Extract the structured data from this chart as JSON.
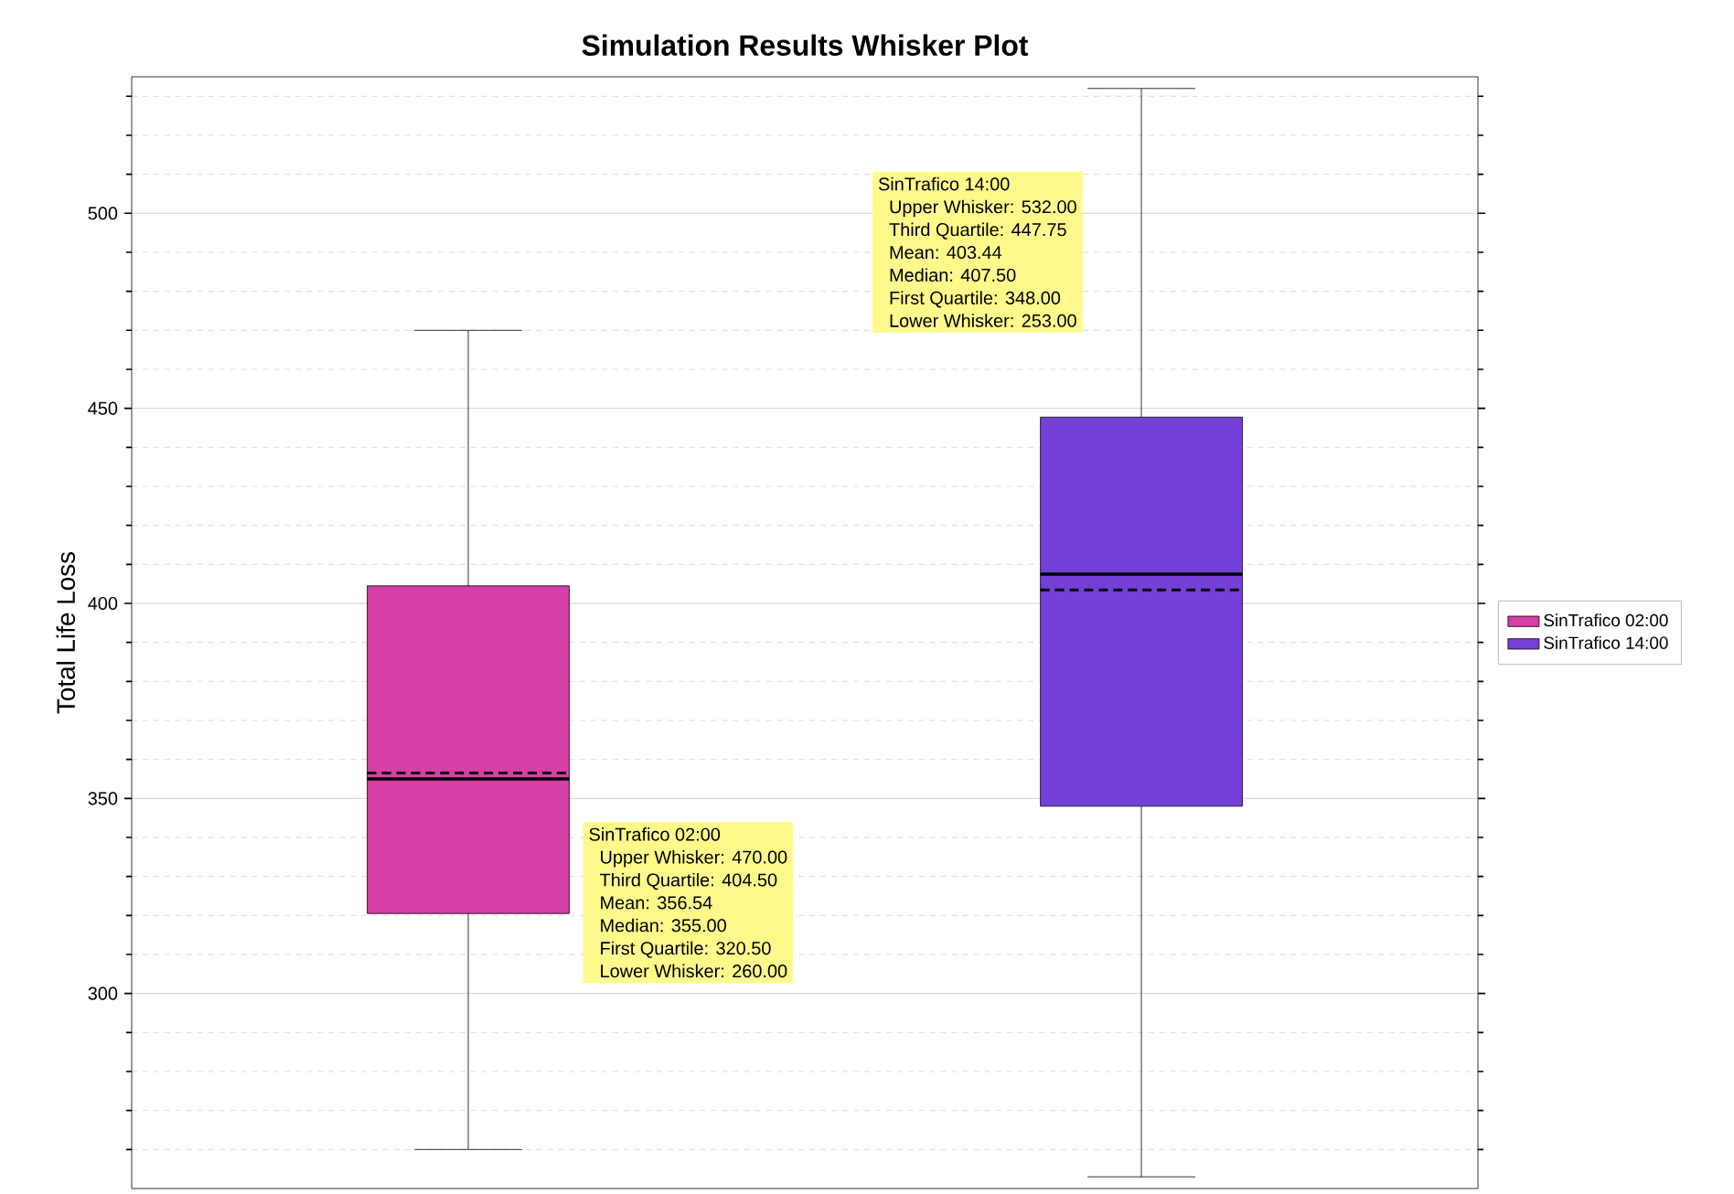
{
  "chart_data": {
    "type": "box",
    "title": "Simulation Results Whisker Plot",
    "ylabel": "Total Life Loss",
    "categories": [
      null,
      null
    ],
    "series": [
      {
        "name": "SinTrafico 02:00",
        "color": "#d63fa6",
        "boxes": [
          {
            "low": 260,
            "q1": 320.5,
            "median": 355,
            "q3": 404.5,
            "high": 470,
            "mean": 356.54
          },
          null
        ]
      },
      {
        "name": "SinTrafico 14:00",
        "color": "#7440d8",
        "boxes": [
          null,
          {
            "low": 253,
            "q1": 348,
            "median": 407.5,
            "q3": 447.75,
            "high": 532,
            "mean": 403.44
          }
        ]
      }
    ],
    "ylim": [
      250,
      535
    ],
    "yticks": [
      {
        "value": 260,
        "label": null
      },
      {
        "value": 270,
        "label": null
      },
      {
        "value": 280,
        "label": null
      },
      {
        "value": 290,
        "label": null
      },
      300,
      {
        "value": 310,
        "label": null
      },
      {
        "value": 320,
        "label": null
      },
      {
        "value": 330,
        "label": null
      },
      {
        "value": 340,
        "label": null
      },
      350,
      {
        "value": 360,
        "label": null
      },
      {
        "value": 370,
        "label": null
      },
      {
        "value": 380,
        "label": null
      },
      {
        "value": 390,
        "label": null
      },
      400,
      {
        "value": 410,
        "label": null
      },
      {
        "value": 420,
        "label": null
      },
      {
        "value": 430,
        "label": null
      },
      {
        "value": 440,
        "label": null
      },
      450,
      {
        "value": 460,
        "label": null
      },
      {
        "value": 470,
        "label": null
      },
      {
        "value": 480,
        "label": null
      },
      {
        "value": 490,
        "label": null
      },
      500,
      {
        "value": 510,
        "label": null
      },
      {
        "value": 520,
        "label": null
      },
      {
        "value": 530,
        "label": null
      }
    ],
    "grid": "y",
    "legend": "right",
    "tick_labels": "y",
    "annotations": [
      "SinTrafico 02:00",
      "Upper Whisker: 470.00",
      "Third Quartile: 404.50",
      "Mean: 356.54",
      "Median: 355.00",
      "First Quartile: 320.50",
      "Lower Whisker: 260.00",
      "SinTrafico 14:00",
      "Upper Whisker: 532.00",
      "Third Quartile: 447.75",
      "Mean: 403.44",
      "Median: 407.50",
      "First Quartile: 348.00",
      "Lower Whisker: 253.00"
    ]
  }
}
